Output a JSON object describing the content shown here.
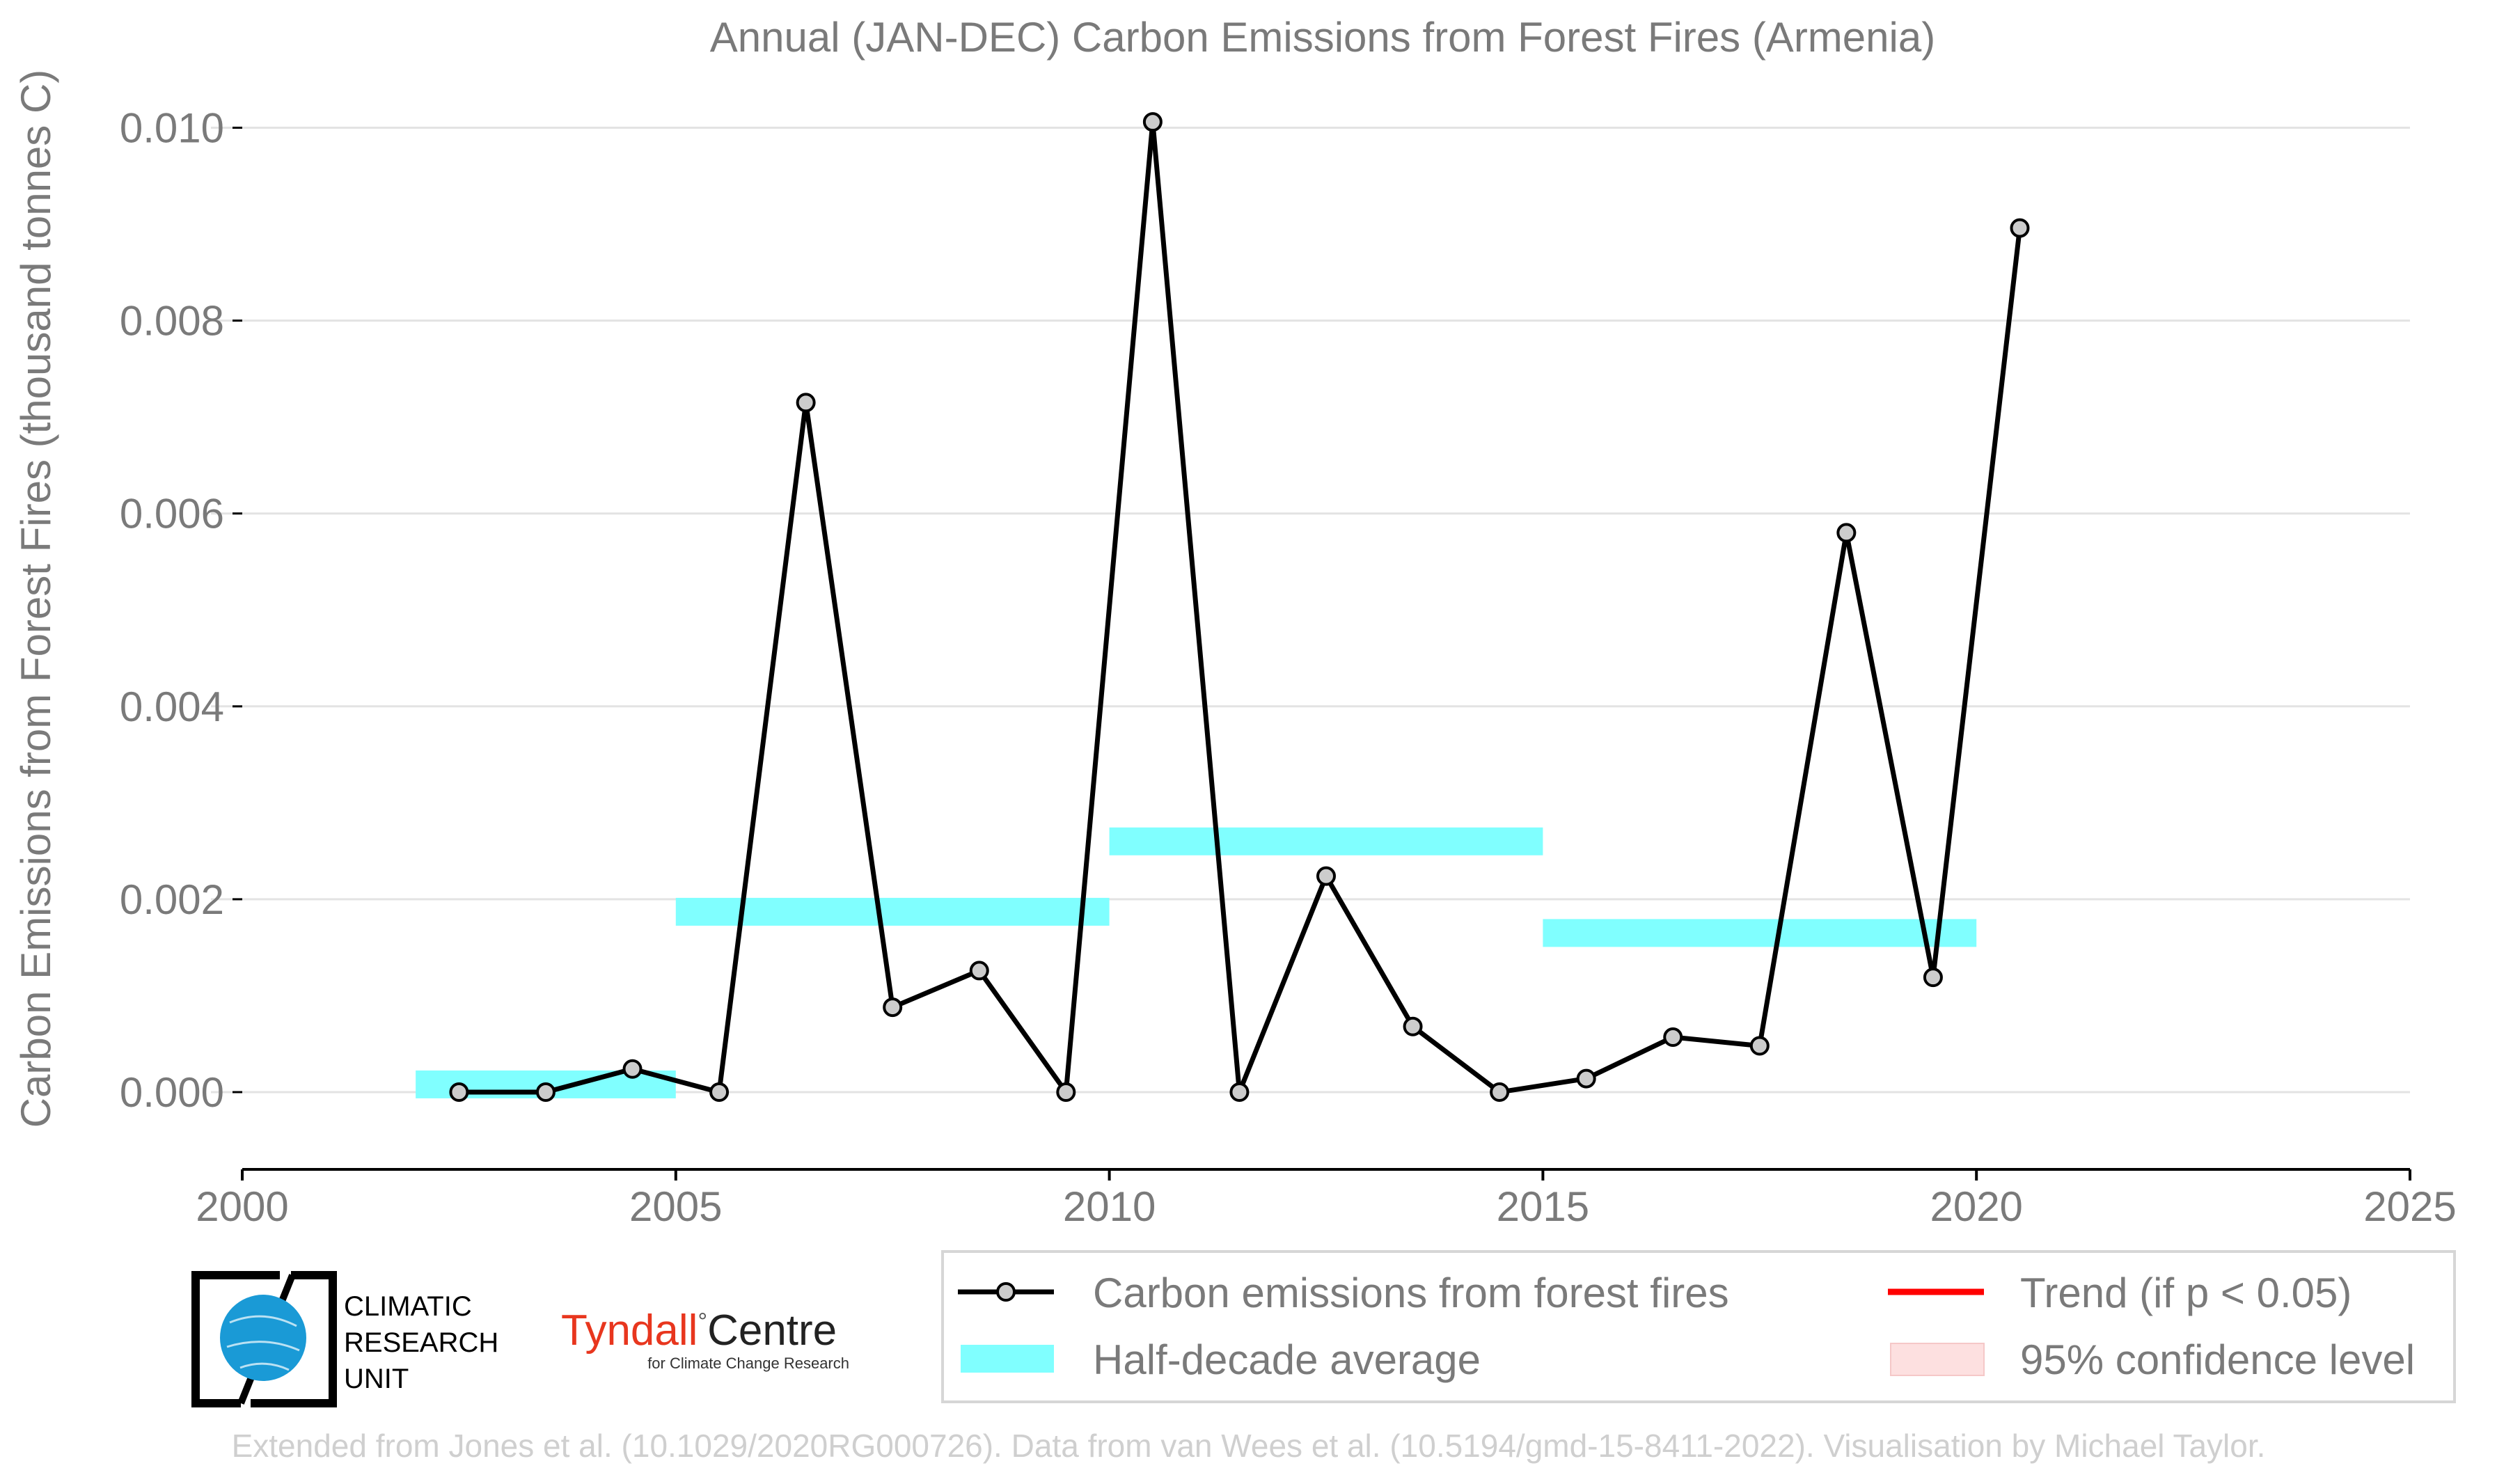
{
  "chart_data": {
    "type": "line",
    "title": "Annual (JAN-DEC) Carbon Emissions from Forest Fires (Armenia)",
    "ylabel": "Carbon Emissions from Forest Fires (thousand tonnes C)",
    "xlabel": "",
    "xlim": [
      2000,
      2025
    ],
    "ylim": [
      -0.0008,
      0.0105
    ],
    "x_ticks": [
      2000,
      2005,
      2010,
      2015,
      2020,
      2025
    ],
    "y_ticks": [
      0.0,
      0.002,
      0.004,
      0.006,
      0.008,
      0.01
    ],
    "y_tick_labels": [
      "0.000",
      "0.002",
      "0.004",
      "0.006",
      "0.008",
      "0.010"
    ],
    "x_tick_labels": [
      "2000",
      "2005",
      "2010",
      "2015",
      "2020",
      "2025"
    ],
    "grid": "horizontal",
    "series": [
      {
        "name": "Carbon emissions from forest fires",
        "color": "#000000",
        "marker_fill": "#cccccc",
        "x": [
          2002.5,
          2003.5,
          2004.5,
          2005.5,
          2006.5,
          2007.5,
          2008.5,
          2009.5,
          2010.5,
          2011.5,
          2012.5,
          2013.5,
          2014.5,
          2015.5,
          2016.5,
          2017.5,
          2018.5,
          2019.5,
          2020.5
        ],
        "y": [
          0.0,
          0.0,
          0.00024,
          0.0,
          0.00715,
          0.00088,
          0.00126,
          0.0,
          0.01006,
          0.0,
          0.00224,
          0.00068,
          0.0,
          0.00014,
          0.00057,
          0.00048,
          0.0058,
          0.00119,
          0.00896
        ]
      }
    ],
    "half_decade_average": {
      "name": "Half-decade average",
      "color": "#80ffff",
      "segments": [
        {
          "x0": 2002,
          "x1": 2005,
          "y": 8e-05
        },
        {
          "x0": 2005,
          "x1": 2010,
          "y": 0.00187
        },
        {
          "x0": 2010,
          "x1": 2015,
          "y": 0.0026
        },
        {
          "x0": 2015,
          "x1": 2020,
          "y": 0.00165
        }
      ]
    },
    "legend": {
      "placement": "bottom-right",
      "entries": [
        {
          "label": "Carbon emissions from forest fires",
          "kind": "line-marker",
          "color": "#000000"
        },
        {
          "label": "Trend (if p < 0.05)",
          "kind": "line",
          "color": "#ff0000"
        },
        {
          "label": "Half-decade average",
          "kind": "band",
          "color": "#80ffff"
        },
        {
          "label": "95% confidence level",
          "kind": "patch",
          "color": "#fde0e0"
        }
      ]
    }
  },
  "logos": {
    "cru_lines": [
      "CLIMATIC",
      "RESEARCH",
      "UNIT"
    ],
    "tyndall_name": "Tyndall",
    "tyndall_degree": "°",
    "tyndall_centre": "Centre",
    "tyndall_sub": "for Climate Change Research",
    "tyndall_color": "#e8361e"
  },
  "footer": "Extended from Jones et al. (10.1029/2020RG000726). Data from van Wees et al. (10.5194/gmd-15-8411-2022). Visualisation by Michael Taylor."
}
